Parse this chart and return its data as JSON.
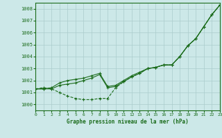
{
  "title": "Graphe pression niveau de la mer (hPa)",
  "background_color": "#cce8e8",
  "grid_color": "#aacccc",
  "line_color": "#1a6b1a",
  "ylim": [
    999.5,
    1008.5
  ],
  "xlim": [
    0,
    23
  ],
  "yticks": [
    1000,
    1001,
    1002,
    1003,
    1004,
    1005,
    1006,
    1007,
    1008
  ],
  "xticks": [
    0,
    1,
    2,
    3,
    4,
    5,
    6,
    7,
    8,
    9,
    10,
    11,
    12,
    13,
    14,
    15,
    16,
    17,
    18,
    19,
    20,
    21,
    22,
    23
  ],
  "series1": [
    1001.3,
    1001.4,
    1001.3,
    1001.0,
    1000.7,
    1000.5,
    1000.4,
    1000.4,
    1000.5,
    1000.5,
    1001.4,
    1001.9,
    1002.3,
    1002.6,
    1003.0,
    1003.1,
    1003.3,
    1003.3,
    1004.0,
    1004.9,
    1005.5,
    1006.5,
    1007.5,
    1008.3
  ],
  "series2": [
    1001.3,
    1001.3,
    1001.3,
    1001.6,
    1001.7,
    1001.8,
    1002.0,
    1002.2,
    1002.5,
    1001.4,
    1001.5,
    1001.9,
    1002.3,
    1002.6,
    1003.0,
    1003.1,
    1003.3,
    1003.3,
    1004.0,
    1004.9,
    1005.5,
    1006.5,
    1007.5,
    1008.3
  ],
  "series3": [
    1001.3,
    1001.3,
    1001.4,
    1001.8,
    1002.0,
    1002.1,
    1002.2,
    1002.4,
    1002.6,
    1001.5,
    1001.6,
    1002.0,
    1002.4,
    1002.7,
    1003.0,
    1003.1,
    1003.3,
    1003.3,
    1004.0,
    1004.9,
    1005.5,
    1006.5,
    1007.5,
    1008.3
  ]
}
